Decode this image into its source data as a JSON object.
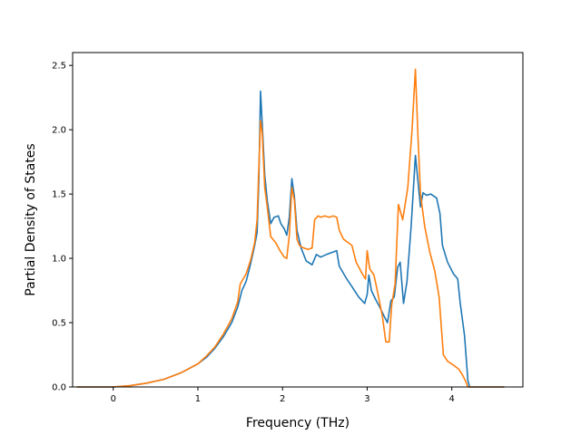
{
  "chart_data": {
    "type": "line",
    "title": "",
    "xlabel": "Frequency (THz)",
    "ylabel": "Partial Density of States",
    "xlim": [
      -0.48,
      4.84
    ],
    "ylim": [
      0.0,
      2.6
    ],
    "xticks": [
      0,
      1,
      2,
      3,
      4
    ],
    "yticks": [
      0.0,
      0.5,
      1.0,
      1.5,
      2.0,
      2.5
    ],
    "xtick_labels": [
      "0",
      "1",
      "2",
      "3",
      "4"
    ],
    "ytick_labels": [
      "0.0",
      "0.5",
      "1.0",
      "1.5",
      "2.0",
      "2.5"
    ],
    "grid": false,
    "legend": "none",
    "series": [
      {
        "color": "#1f77b4",
        "points": [
          [
            -0.43,
            0.0
          ],
          [
            -0.1,
            0.0
          ],
          [
            0.0,
            0.0
          ],
          [
            0.2,
            0.01
          ],
          [
            0.4,
            0.03
          ],
          [
            0.6,
            0.06
          ],
          [
            0.8,
            0.11
          ],
          [
            1.0,
            0.18
          ],
          [
            1.1,
            0.23
          ],
          [
            1.2,
            0.3
          ],
          [
            1.3,
            0.39
          ],
          [
            1.4,
            0.5
          ],
          [
            1.47,
            0.62
          ],
          [
            1.52,
            0.75
          ],
          [
            1.57,
            0.82
          ],
          [
            1.62,
            0.95
          ],
          [
            1.67,
            1.1
          ],
          [
            1.7,
            1.2
          ],
          [
            1.72,
            1.6
          ],
          [
            1.74,
            2.3
          ],
          [
            1.76,
            2.05
          ],
          [
            1.79,
            1.65
          ],
          [
            1.82,
            1.45
          ],
          [
            1.86,
            1.27
          ],
          [
            1.9,
            1.32
          ],
          [
            1.95,
            1.33
          ],
          [
            1.98,
            1.27
          ],
          [
            2.02,
            1.23
          ],
          [
            2.05,
            1.18
          ],
          [
            2.08,
            1.32
          ],
          [
            2.11,
            1.62
          ],
          [
            2.14,
            1.48
          ],
          [
            2.17,
            1.22
          ],
          [
            2.22,
            1.08
          ],
          [
            2.28,
            0.98
          ],
          [
            2.35,
            0.95
          ],
          [
            2.4,
            1.03
          ],
          [
            2.45,
            1.01
          ],
          [
            2.52,
            1.03
          ],
          [
            2.6,
            1.05
          ],
          [
            2.64,
            1.06
          ],
          [
            2.67,
            0.94
          ],
          [
            2.75,
            0.85
          ],
          [
            2.82,
            0.78
          ],
          [
            2.9,
            0.7
          ],
          [
            2.97,
            0.65
          ],
          [
            3.0,
            0.72
          ],
          [
            3.02,
            0.87
          ],
          [
            3.05,
            0.75
          ],
          [
            3.1,
            0.68
          ],
          [
            3.15,
            0.62
          ],
          [
            3.2,
            0.55
          ],
          [
            3.24,
            0.5
          ],
          [
            3.28,
            0.67
          ],
          [
            3.32,
            0.7
          ],
          [
            3.36,
            0.93
          ],
          [
            3.39,
            0.97
          ],
          [
            3.43,
            0.65
          ],
          [
            3.47,
            0.82
          ],
          [
            3.52,
            1.25
          ],
          [
            3.57,
            1.8
          ],
          [
            3.6,
            1.6
          ],
          [
            3.63,
            1.4
          ],
          [
            3.66,
            1.51
          ],
          [
            3.7,
            1.49
          ],
          [
            3.75,
            1.5
          ],
          [
            3.82,
            1.47
          ],
          [
            3.86,
            1.35
          ],
          [
            3.89,
            1.1
          ],
          [
            3.95,
            0.97
          ],
          [
            4.02,
            0.88
          ],
          [
            4.07,
            0.84
          ],
          [
            4.1,
            0.65
          ],
          [
            4.15,
            0.4
          ],
          [
            4.19,
            0.05
          ],
          [
            4.21,
            0.0
          ],
          [
            4.4,
            0.0
          ],
          [
            4.62,
            0.0
          ]
        ]
      },
      {
        "color": "#ff7f0e",
        "points": [
          [
            -0.43,
            0.0
          ],
          [
            -0.1,
            0.0
          ],
          [
            0.0,
            0.0
          ],
          [
            0.2,
            0.01
          ],
          [
            0.4,
            0.03
          ],
          [
            0.6,
            0.06
          ],
          [
            0.8,
            0.11
          ],
          [
            1.0,
            0.18
          ],
          [
            1.1,
            0.24
          ],
          [
            1.2,
            0.31
          ],
          [
            1.3,
            0.41
          ],
          [
            1.4,
            0.53
          ],
          [
            1.47,
            0.66
          ],
          [
            1.5,
            0.8
          ],
          [
            1.57,
            0.88
          ],
          [
            1.62,
            0.98
          ],
          [
            1.67,
            1.12
          ],
          [
            1.7,
            1.3
          ],
          [
            1.72,
            1.7
          ],
          [
            1.74,
            2.07
          ],
          [
            1.76,
            1.98
          ],
          [
            1.79,
            1.55
          ],
          [
            1.82,
            1.4
          ],
          [
            1.86,
            1.17
          ],
          [
            1.92,
            1.12
          ],
          [
            1.97,
            1.06
          ],
          [
            2.02,
            1.01
          ],
          [
            2.05,
            1.0
          ],
          [
            2.08,
            1.18
          ],
          [
            2.11,
            1.55
          ],
          [
            2.14,
            1.45
          ],
          [
            2.17,
            1.15
          ],
          [
            2.2,
            1.1
          ],
          [
            2.25,
            1.08
          ],
          [
            2.3,
            1.07
          ],
          [
            2.35,
            1.08
          ],
          [
            2.38,
            1.3
          ],
          [
            2.42,
            1.33
          ],
          [
            2.45,
            1.32
          ],
          [
            2.5,
            1.33
          ],
          [
            2.55,
            1.32
          ],
          [
            2.6,
            1.33
          ],
          [
            2.64,
            1.32
          ],
          [
            2.67,
            1.22
          ],
          [
            2.72,
            1.15
          ],
          [
            2.78,
            1.12
          ],
          [
            2.82,
            1.1
          ],
          [
            2.87,
            0.97
          ],
          [
            2.95,
            0.87
          ],
          [
            2.98,
            0.84
          ],
          [
            3.0,
            1.06
          ],
          [
            3.03,
            0.92
          ],
          [
            3.08,
            0.87
          ],
          [
            3.12,
            0.75
          ],
          [
            3.18,
            0.55
          ],
          [
            3.22,
            0.35
          ],
          [
            3.26,
            0.35
          ],
          [
            3.29,
            0.64
          ],
          [
            3.33,
            0.8
          ],
          [
            3.37,
            1.42
          ],
          [
            3.42,
            1.3
          ],
          [
            3.48,
            1.55
          ],
          [
            3.53,
            2.0
          ],
          [
            3.57,
            2.47
          ],
          [
            3.6,
            1.95
          ],
          [
            3.63,
            1.5
          ],
          [
            3.68,
            1.25
          ],
          [
            3.74,
            1.05
          ],
          [
            3.8,
            0.9
          ],
          [
            3.85,
            0.7
          ],
          [
            3.9,
            0.25
          ],
          [
            3.95,
            0.2
          ],
          [
            4.02,
            0.17
          ],
          [
            4.08,
            0.14
          ],
          [
            4.12,
            0.1
          ],
          [
            4.16,
            0.05
          ],
          [
            4.19,
            0.0
          ],
          [
            4.4,
            0.0
          ],
          [
            4.62,
            0.0
          ]
        ]
      }
    ]
  }
}
